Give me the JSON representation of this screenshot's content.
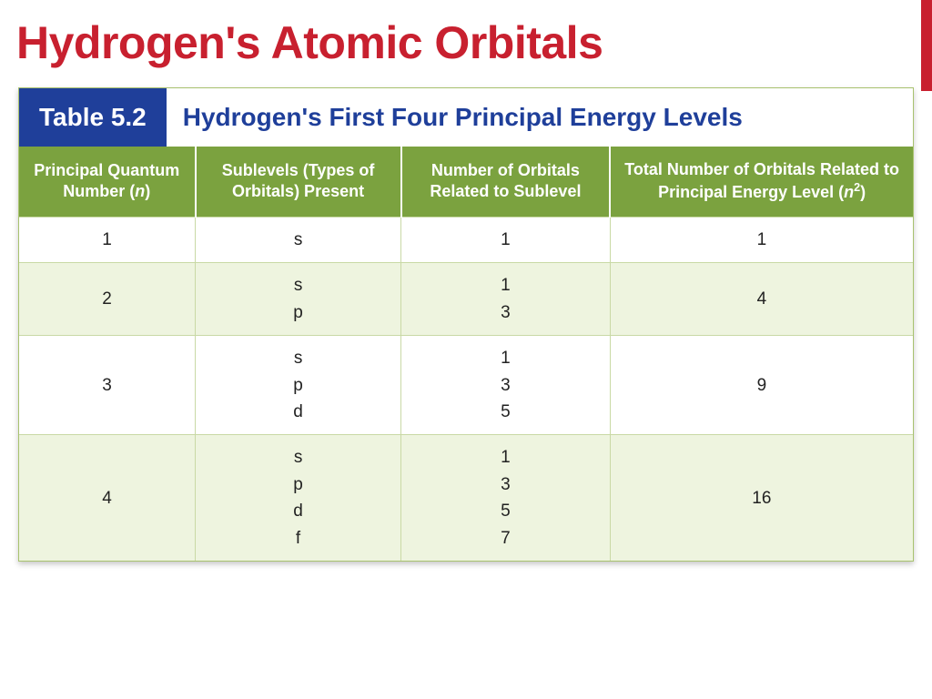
{
  "page": {
    "title": "Hydrogen's Atomic Orbitals",
    "title_color": "#c8202f",
    "accent_bar_color": "#c8202f"
  },
  "table": {
    "badge": "Table 5.2",
    "badge_bg": "#1f3f9a",
    "caption": "Hydrogen's First Four Principal Energy Levels",
    "caption_color": "#1f3f9a",
    "header_bg": "#7ba23f",
    "row_alt_bg": "#eef4df",
    "row_bg": "#ffffff",
    "border_color": "#a8c26f",
    "columns": [
      {
        "label_pre": "Principal Quantum Number (",
        "label_ital": "n",
        "label_post": ")"
      },
      {
        "label": "Sublevels (Types of Orbitals) Present"
      },
      {
        "label": "Number of Orbitals Related to Sublevel"
      },
      {
        "label_pre": "Total Number of Orbitals Related to Principal Energy Level (",
        "label_ital": "n",
        "label_sup": "2",
        "label_post": ")"
      }
    ],
    "rows": [
      {
        "n": "1",
        "sublevels": [
          "s"
        ],
        "orbitals": [
          "1"
        ],
        "total": "1"
      },
      {
        "n": "2",
        "sublevels": [
          "s",
          "p"
        ],
        "orbitals": [
          "1",
          "3"
        ],
        "total": "4"
      },
      {
        "n": "3",
        "sublevels": [
          "s",
          "p",
          "d"
        ],
        "orbitals": [
          "1",
          "3",
          "5"
        ],
        "total": "9"
      },
      {
        "n": "4",
        "sublevels": [
          "s",
          "p",
          "d",
          "f"
        ],
        "orbitals": [
          "1",
          "3",
          "5",
          "7"
        ],
        "total": "16"
      }
    ]
  },
  "style": {
    "title_fontsize": 50,
    "badge_fontsize": 28,
    "caption_fontsize": 28,
    "header_fontsize": 18,
    "cell_fontsize": 19
  }
}
